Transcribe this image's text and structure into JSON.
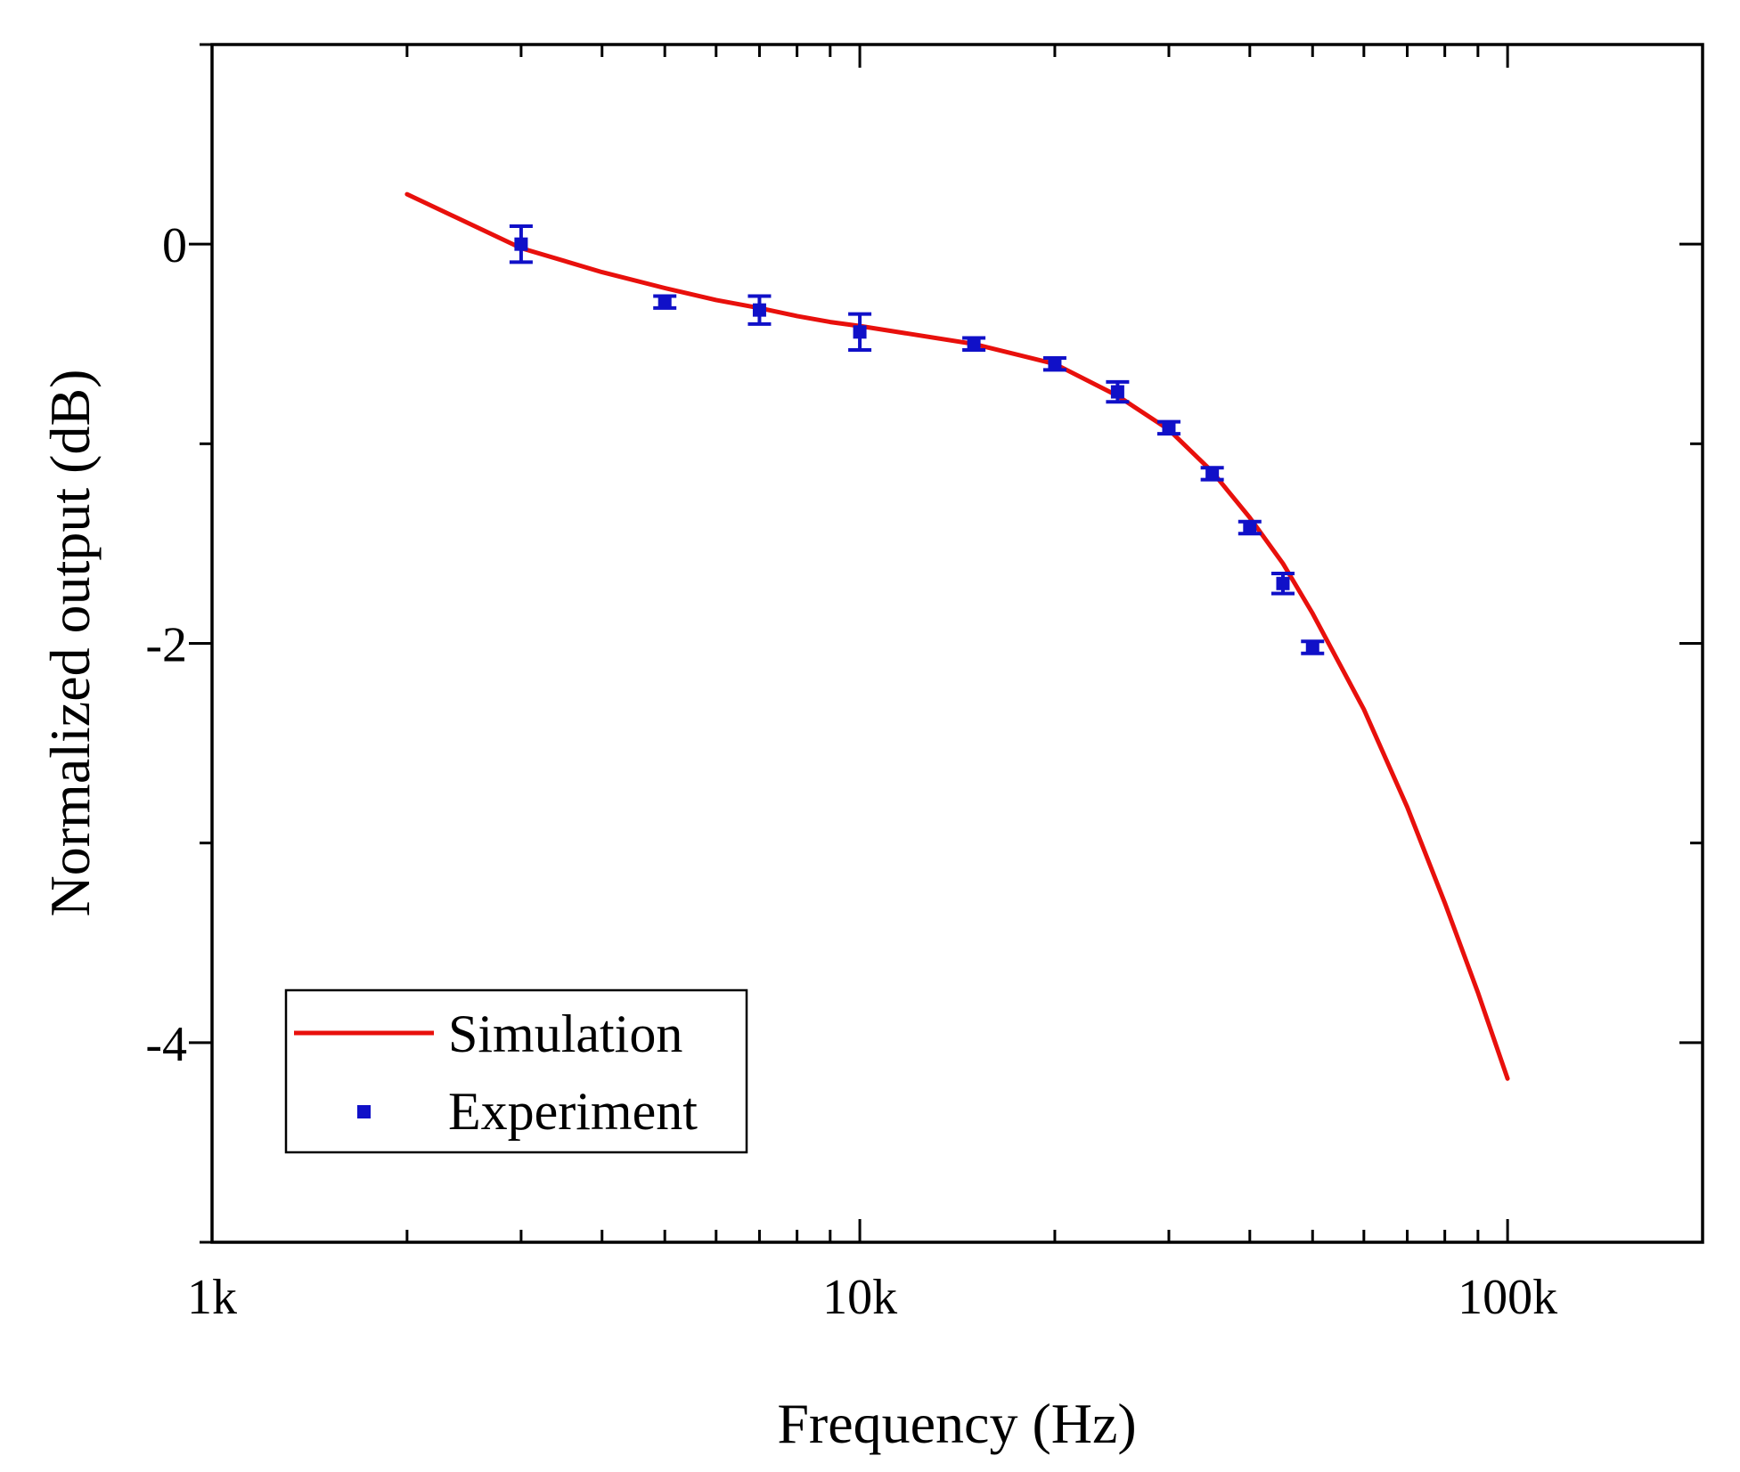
{
  "chart_data": {
    "type": "scatter",
    "xlabel": "Frequency (Hz)",
    "ylabel": "Normalized output (dB)",
    "x_scale": "log",
    "xlim": [
      1000,
      200000
    ],
    "ylim": [
      -5,
      1
    ],
    "x_ticks": [
      1000,
      10000,
      100000
    ],
    "x_tick_labels": [
      "1k",
      "10k",
      "100k"
    ],
    "y_ticks": [
      0,
      -2,
      -4
    ],
    "y_tick_labels": [
      "0",
      "-2",
      "-4"
    ],
    "grid": false,
    "legend_position": "bottom-left",
    "series": [
      {
        "name": "Simulation",
        "kind": "line",
        "color": "#e8100c",
        "x": [
          2000,
          3000,
          4000,
          5000,
          6000,
          7000,
          8000,
          9000,
          10000,
          15000,
          20000,
          25000,
          30000,
          35000,
          40000,
          45000,
          50000,
          60000,
          70000,
          80000,
          90000,
          100000
        ],
        "y": [
          0.25,
          -0.02,
          -0.14,
          -0.22,
          -0.28,
          -0.32,
          -0.36,
          -0.39,
          -0.41,
          -0.5,
          -0.6,
          -0.76,
          -0.93,
          -1.14,
          -1.37,
          -1.6,
          -1.85,
          -2.33,
          -2.82,
          -3.3,
          -3.75,
          -4.18
        ]
      },
      {
        "name": "Experiment",
        "kind": "scatter",
        "color": "#1010c8",
        "x": [
          3000,
          5000,
          7000,
          10000,
          15000,
          20000,
          25000,
          30000,
          35000,
          40000,
          45000,
          50000
        ],
        "y": [
          0.0,
          -0.29,
          -0.33,
          -0.44,
          -0.5,
          -0.6,
          -0.74,
          -0.92,
          -1.15,
          -1.42,
          -1.7,
          -2.02
        ],
        "err": [
          0.09,
          0.03,
          0.07,
          0.09,
          0.03,
          0.03,
          0.05,
          0.03,
          0.03,
          0.03,
          0.05,
          0.03
        ]
      }
    ]
  }
}
